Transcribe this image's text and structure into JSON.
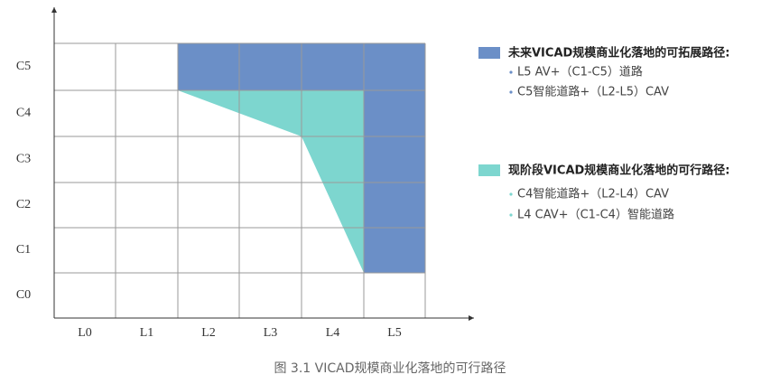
{
  "y_labels": [
    "C0",
    "C1",
    "C2",
    "C3",
    "C4",
    "C5"
  ],
  "x_labels": [
    "L0",
    "L1",
    "L2",
    "L3",
    "L4",
    "L5"
  ],
  "legend": [
    {
      "title": "未来VICAD规模商业化落地的可拓展路径:",
      "items": [
        "L5 AV+（C1-C5）道路",
        "C5智能道路+（L2-L5）CAV"
      ]
    },
    {
      "title": "现阶段VICAD规模商业化落地的可行路径:",
      "items": [
        "C4智能道路+（L2-L4）CAV",
        "L4 CAV+（C1-C4）智能道路"
      ]
    }
  ],
  "caption": "图 3.1 VICAD规模商业化落地的可行路径"
}
